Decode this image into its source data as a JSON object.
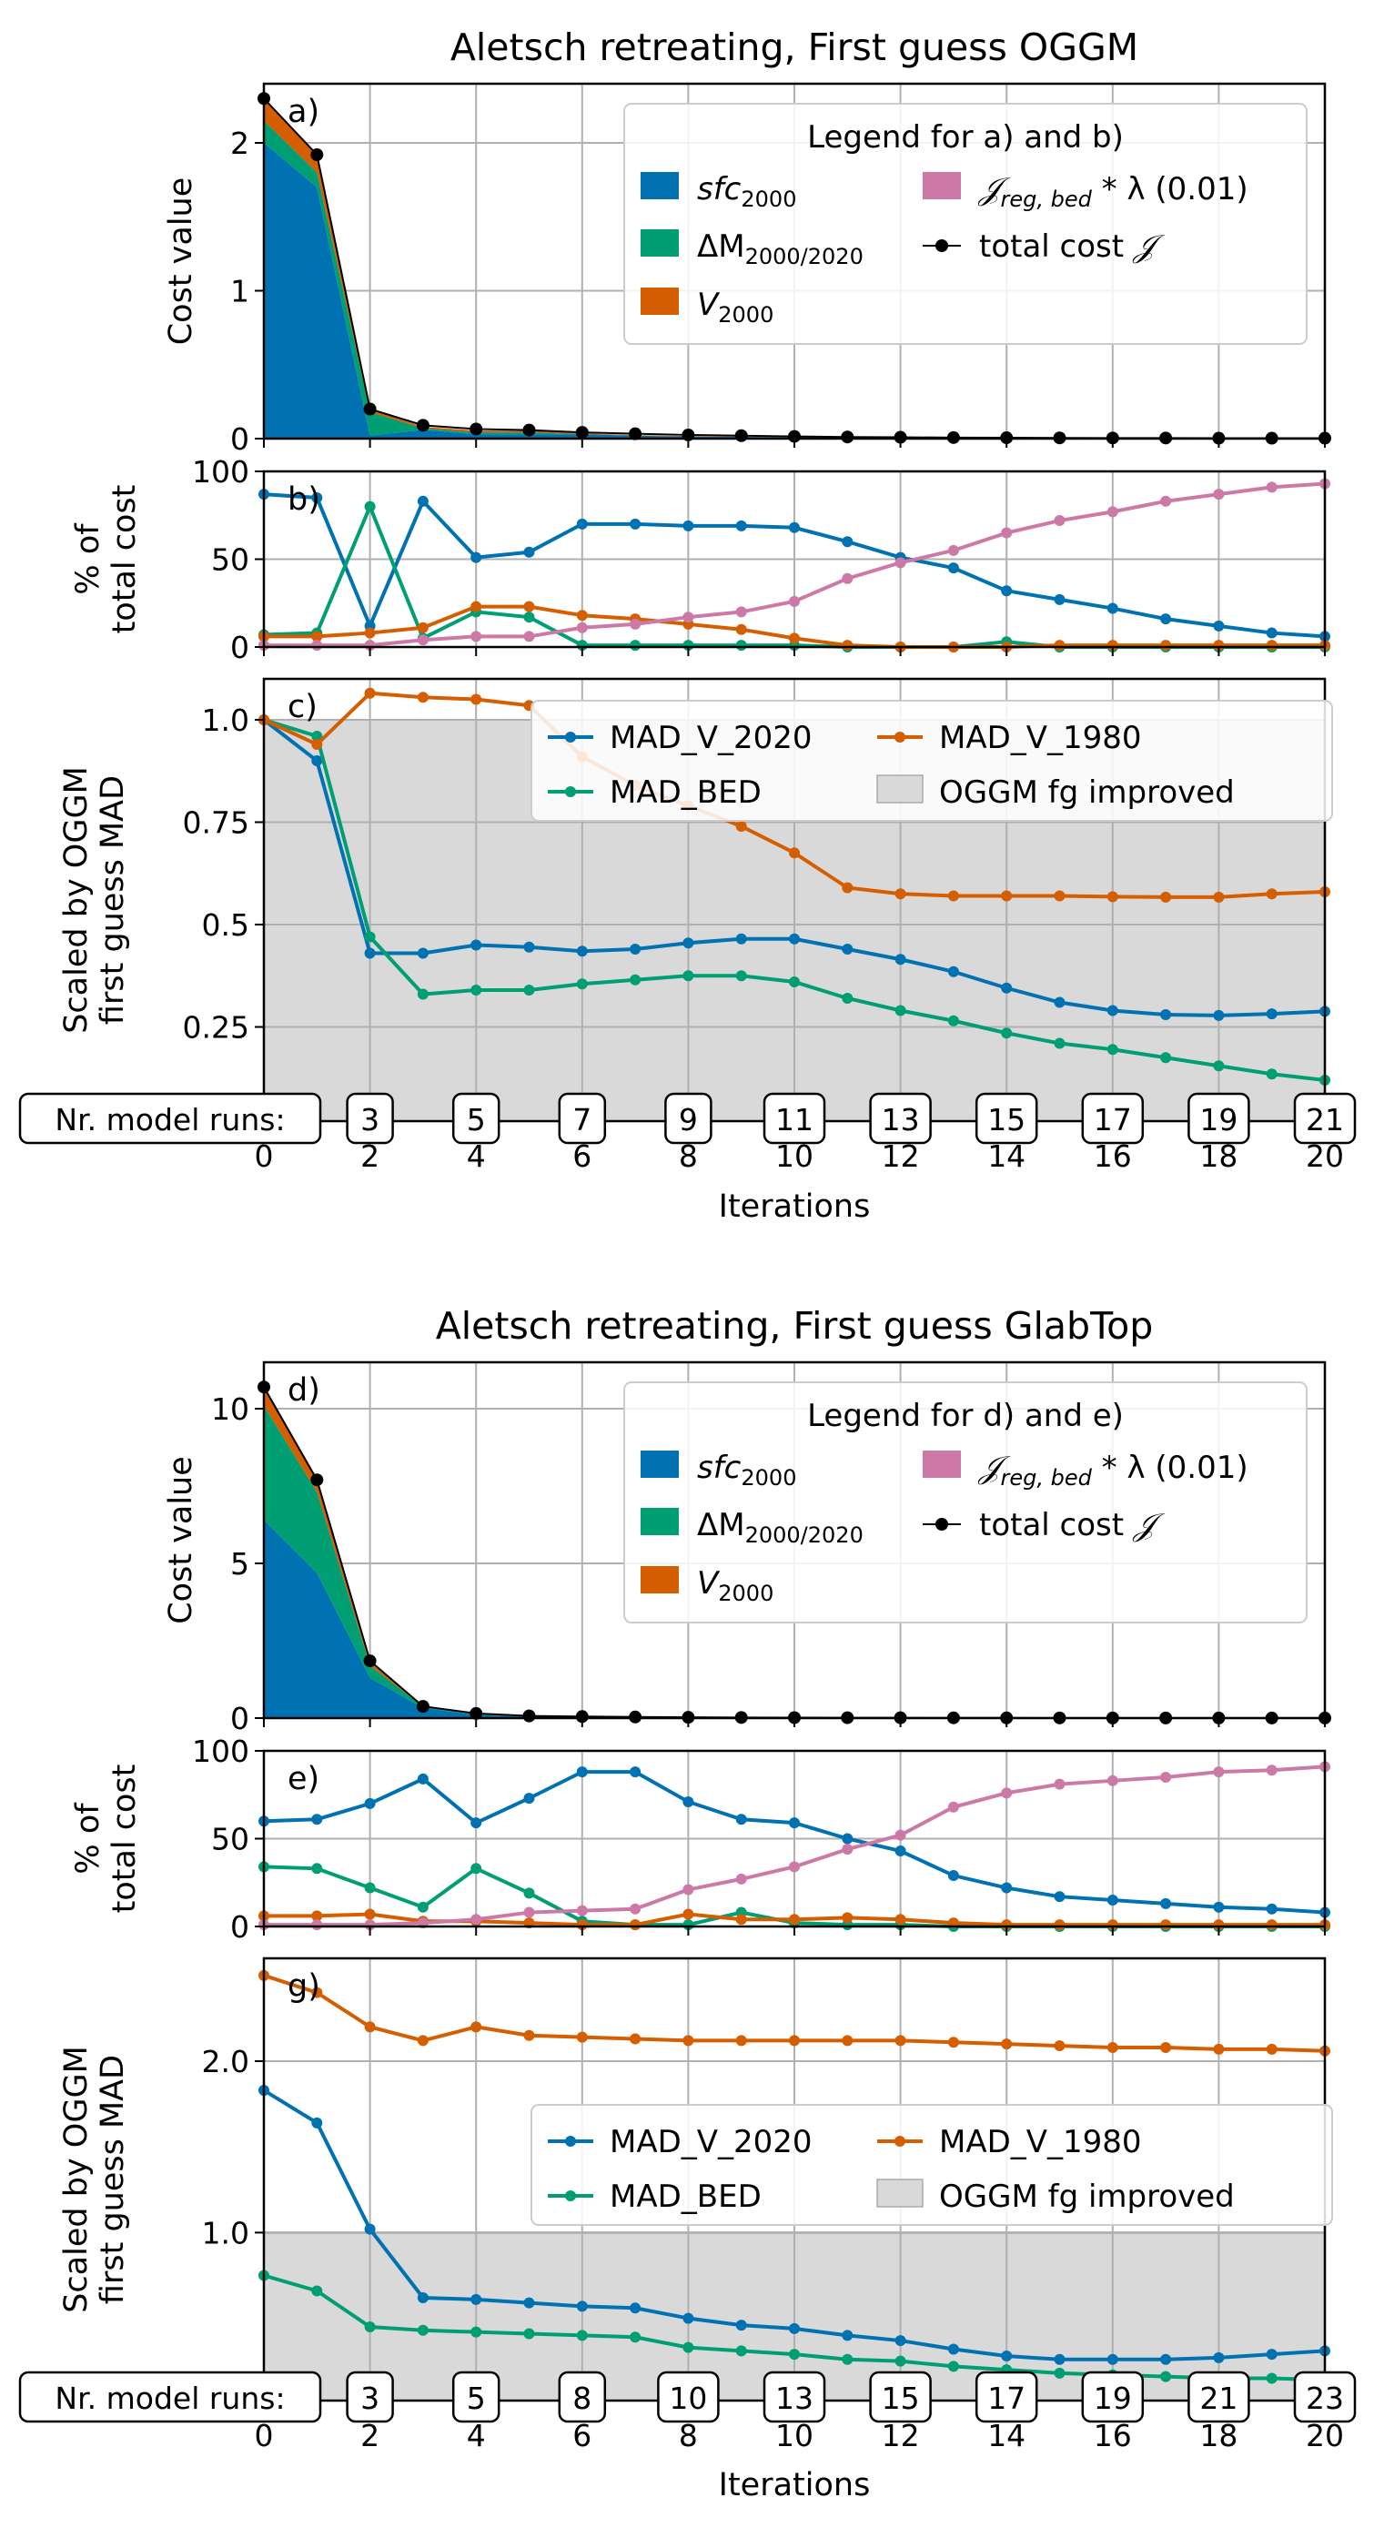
{
  "figure": {
    "xlabel": "Iterations",
    "x_ticks": [
      0,
      2,
      4,
      6,
      8,
      10,
      12,
      14,
      16,
      18,
      20
    ],
    "runs_label": "Nr. model runs:",
    "colors": {
      "sfc": "#0072B2",
      "dm": "#009E73",
      "v": "#D55E00",
      "reg": "#CC79A7",
      "total": "#000000",
      "improved": "#d9d9d9"
    }
  },
  "chart_data": [
    {
      "type": "area",
      "panel": "a)",
      "title": "Aletsch retreating, First guess OGGM",
      "ylabel": "Cost value",
      "ylim": [
        0,
        2.4
      ],
      "y_ticks": [
        0,
        1,
        2
      ],
      "x": [
        0,
        1,
        2,
        3,
        4,
        5,
        6,
        7,
        8,
        9,
        10,
        11,
        12,
        13,
        14,
        15,
        16,
        17,
        18,
        19,
        20
      ],
      "series": [
        {
          "key": "sfc",
          "values": [
            2.0,
            1.7,
            0.02,
            0.06,
            0.03,
            0.03,
            0.03,
            0.02,
            0.015,
            0.012,
            0.01,
            0.006,
            0.004,
            0.003,
            0.002,
            0.001,
            0.001,
            0.001,
            0.0005,
            0.0003,
            0.0002
          ]
        },
        {
          "key": "dm",
          "values": [
            0.15,
            0.1,
            0.16,
            0.01,
            0.012,
            0.012,
            0.0,
            0.0,
            0.0,
            0.0,
            0.0,
            0.0,
            0.0,
            0.0,
            0.0,
            0.0,
            0.0,
            0.0,
            0.0,
            0.0,
            0.0
          ]
        },
        {
          "key": "v",
          "values": [
            0.15,
            0.12,
            0.02,
            0.01,
            0.013,
            0.013,
            0.006,
            0.004,
            0.003,
            0.002,
            0.001,
            0.0,
            0.0,
            0.0,
            0.0,
            0.0,
            0.0,
            0.0,
            0.0,
            0.0,
            0.0
          ]
        },
        {
          "key": "reg",
          "values": [
            0.0,
            0.0,
            0.0,
            0.0,
            0.0,
            0.0,
            0.0,
            0.0,
            0.0,
            0.0,
            0.0,
            0.0,
            0.0,
            0.0,
            0.0,
            0.0,
            0.0,
            0.0,
            0.0,
            0.0,
            0.0
          ]
        }
      ],
      "total": [
        2.3,
        1.92,
        0.2,
        0.09,
        0.065,
        0.058,
        0.042,
        0.033,
        0.025,
        0.02,
        0.015,
        0.011,
        0.009,
        0.007,
        0.006,
        0.005,
        0.004,
        0.004,
        0.003,
        0.003,
        0.003
      ],
      "legend": {
        "title": "Legend for a) and b)",
        "placement": "top-right",
        "entries": [
          "sfc_2000",
          "ΔM_2000/2020",
          "V_2000",
          "J_reg,bed * λ (0.01)",
          "total cost J"
        ]
      }
    },
    {
      "type": "line",
      "panel": "b)",
      "ylabel_lines": [
        "% of",
        "total cost"
      ],
      "ylim": [
        0,
        100
      ],
      "y_ticks": [
        0,
        50,
        100
      ],
      "x": [
        0,
        1,
        2,
        3,
        4,
        5,
        6,
        7,
        8,
        9,
        10,
        11,
        12,
        13,
        14,
        15,
        16,
        17,
        18,
        19,
        20
      ],
      "series": [
        {
          "key": "sfc",
          "values": [
            87,
            85,
            12,
            83,
            51,
            54,
            70,
            70,
            69,
            69,
            68,
            60,
            51,
            45,
            32,
            27,
            22,
            16,
            12,
            8,
            6
          ]
        },
        {
          "key": "dm",
          "values": [
            7,
            8,
            80,
            5,
            20,
            17,
            1,
            1,
            1,
            1,
            1,
            0,
            0,
            0,
            3,
            0,
            0,
            0,
            0,
            0,
            0
          ]
        },
        {
          "key": "v",
          "values": [
            6,
            6,
            8,
            11,
            23,
            23,
            18,
            16,
            13,
            10,
            5,
            1,
            0,
            0,
            0,
            1,
            1,
            1,
            1,
            1,
            1
          ]
        },
        {
          "key": "reg",
          "values": [
            1,
            1,
            1,
            4,
            6,
            6,
            11,
            13,
            17,
            20,
            26,
            39,
            48,
            55,
            65,
            72,
            77,
            83,
            87,
            91,
            93
          ]
        }
      ]
    },
    {
      "type": "line",
      "panel": "c)",
      "ylabel_lines": [
        "Scaled by OGGM",
        "first guess MAD"
      ],
      "ylim": [
        0.02,
        1.1
      ],
      "y_ticks": [
        0.25,
        0.5,
        0.75,
        1.0
      ],
      "y_tick_labels": [
        "0.25",
        "0.5",
        "0.75",
        "1.0"
      ],
      "improved_below": 1.0,
      "x": [
        0,
        1,
        2,
        3,
        4,
        5,
        6,
        7,
        8,
        9,
        10,
        11,
        12,
        13,
        14,
        15,
        16,
        17,
        18,
        19,
        20
      ],
      "series": [
        {
          "key": "mad_v_2020",
          "values": [
            1.0,
            0.9,
            0.43,
            0.43,
            0.45,
            0.445,
            0.435,
            0.44,
            0.455,
            0.465,
            0.465,
            0.44,
            0.415,
            0.385,
            0.345,
            0.31,
            0.29,
            0.28,
            0.278,
            0.282,
            0.288
          ]
        },
        {
          "key": "mad_bed",
          "values": [
            1.0,
            0.96,
            0.47,
            0.33,
            0.34,
            0.34,
            0.355,
            0.365,
            0.375,
            0.375,
            0.36,
            0.32,
            0.29,
            0.265,
            0.235,
            0.21,
            0.195,
            0.175,
            0.155,
            0.135,
            0.12
          ]
        },
        {
          "key": "mad_v_1980",
          "values": [
            1.0,
            0.94,
            1.065,
            1.055,
            1.05,
            1.035,
            0.91,
            0.84,
            0.79,
            0.74,
            0.675,
            0.59,
            0.575,
            0.57,
            0.57,
            0.57,
            0.568,
            0.567,
            0.567,
            0.575,
            0.58
          ]
        }
      ],
      "legend": {
        "placement": "upper center",
        "entries": [
          "MAD_V_2020",
          "MAD_V_1980",
          "MAD_BED",
          "OGGM fg improved"
        ]
      },
      "runs": [
        {
          "x": 2,
          "label": "3"
        },
        {
          "x": 4,
          "label": "5"
        },
        {
          "x": 6,
          "label": "7"
        },
        {
          "x": 8,
          "label": "9"
        },
        {
          "x": 10,
          "label": "11"
        },
        {
          "x": 12,
          "label": "13"
        },
        {
          "x": 14,
          "label": "15"
        },
        {
          "x": 16,
          "label": "17"
        },
        {
          "x": 18,
          "label": "19"
        },
        {
          "x": 20,
          "label": "21"
        }
      ]
    },
    {
      "type": "area",
      "panel": "d)",
      "title": "Aletsch retreating, First guess GlabTop",
      "ylabel": "Cost value",
      "ylim": [
        0,
        11.5
      ],
      "y_ticks": [
        0,
        5,
        10
      ],
      "x": [
        0,
        1,
        2,
        3,
        4,
        5,
        6,
        7,
        8,
        9,
        10,
        11,
        12,
        13,
        14,
        15,
        16,
        17,
        18,
        19,
        20
      ],
      "series": [
        {
          "key": "sfc",
          "values": [
            6.4,
            4.7,
            1.3,
            0.33,
            0.1,
            0.05,
            0.04,
            0.03,
            0.02,
            0.015,
            0.01,
            0.008,
            0.006,
            0.004,
            0.003,
            0.002,
            0.002,
            0.001,
            0.001,
            0.001,
            0.001
          ]
        },
        {
          "key": "dm",
          "values": [
            3.7,
            2.6,
            0.4,
            0.04,
            0.05,
            0.013,
            0.0,
            0.0,
            0.0,
            0.0,
            0.0,
            0.0,
            0.0,
            0.0,
            0.0,
            0.0,
            0.0,
            0.0,
            0.0,
            0.0,
            0.0
          ]
        },
        {
          "key": "v",
          "values": [
            0.6,
            0.4,
            0.1,
            0.02,
            0.01,
            0.005,
            0.0,
            0.0,
            0.0,
            0.0,
            0.0,
            0.0,
            0.0,
            0.0,
            0.0,
            0.0,
            0.0,
            0.0,
            0.0,
            0.0,
            0.0
          ]
        },
        {
          "key": "reg",
          "values": [
            0.0,
            0.0,
            0.0,
            0.0,
            0.0,
            0.0,
            0.0,
            0.0,
            0.0,
            0.0,
            0.0,
            0.0,
            0.0,
            0.0,
            0.0,
            0.0,
            0.0,
            0.0,
            0.0,
            0.0,
            0.0
          ]
        }
      ],
      "total": [
        10.7,
        7.7,
        1.85,
        0.38,
        0.15,
        0.07,
        0.05,
        0.035,
        0.025,
        0.02,
        0.015,
        0.012,
        0.01,
        0.008,
        0.006,
        0.005,
        0.004,
        0.004,
        0.003,
        0.003,
        0.003
      ],
      "legend": {
        "title": "Legend for d) and e)",
        "placement": "top-right",
        "entries": [
          "sfc_2000",
          "ΔM_2000/2020",
          "V_2000",
          "J_reg,bed * λ (0.01)",
          "total cost J"
        ]
      }
    },
    {
      "type": "line",
      "panel": "e)",
      "ylabel_lines": [
        "% of",
        "total cost"
      ],
      "ylim": [
        0,
        100
      ],
      "y_ticks": [
        0,
        50,
        100
      ],
      "x": [
        0,
        1,
        2,
        3,
        4,
        5,
        6,
        7,
        8,
        9,
        10,
        11,
        12,
        13,
        14,
        15,
        16,
        17,
        18,
        19,
        20
      ],
      "series": [
        {
          "key": "sfc",
          "values": [
            60,
            61,
            70,
            84,
            59,
            73,
            88,
            88,
            71,
            61,
            59,
            50,
            43,
            29,
            22,
            17,
            15,
            13,
            11,
            10,
            8
          ]
        },
        {
          "key": "dm",
          "values": [
            34,
            33,
            22,
            11,
            33,
            19,
            3,
            1,
            1,
            8,
            2,
            1,
            1,
            0,
            0,
            0,
            0,
            0,
            0,
            0,
            0
          ]
        },
        {
          "key": "v",
          "values": [
            6,
            6,
            7,
            3,
            3,
            2,
            1,
            1,
            7,
            4,
            4,
            5,
            4,
            2,
            1,
            1,
            1,
            1,
            1,
            1,
            1
          ]
        },
        {
          "key": "reg",
          "values": [
            1,
            1,
            1,
            2,
            4,
            8,
            9,
            10,
            21,
            27,
            34,
            44,
            52,
            68,
            76,
            81,
            83,
            85,
            88,
            89,
            91
          ]
        }
      ]
    },
    {
      "type": "line",
      "panel": "g)",
      "ylabel_lines": [
        "Scaled by OGGM",
        "first guess MAD"
      ],
      "ylim": [
        0.02,
        2.6
      ],
      "y_ticks": [
        1.0,
        2.0
      ],
      "y_tick_labels": [
        "1.0",
        "2.0"
      ],
      "improved_below": 1.0,
      "x": [
        0,
        1,
        2,
        3,
        4,
        5,
        6,
        7,
        8,
        9,
        10,
        11,
        12,
        13,
        14,
        15,
        16,
        17,
        18,
        19,
        20
      ],
      "series": [
        {
          "key": "mad_v_2020",
          "values": [
            1.83,
            1.64,
            1.02,
            0.62,
            0.61,
            0.59,
            0.57,
            0.56,
            0.5,
            0.46,
            0.44,
            0.4,
            0.37,
            0.32,
            0.28,
            0.26,
            0.26,
            0.26,
            0.27,
            0.29,
            0.31
          ]
        },
        {
          "key": "mad_bed",
          "values": [
            0.75,
            0.66,
            0.45,
            0.43,
            0.42,
            0.41,
            0.4,
            0.39,
            0.33,
            0.31,
            0.29,
            0.26,
            0.25,
            0.22,
            0.2,
            0.18,
            0.17,
            0.16,
            0.15,
            0.15,
            0.14
          ]
        },
        {
          "key": "mad_v_1980",
          "values": [
            2.5,
            2.4,
            2.2,
            2.12,
            2.2,
            2.15,
            2.14,
            2.13,
            2.12,
            2.12,
            2.12,
            2.12,
            2.12,
            2.11,
            2.1,
            2.09,
            2.08,
            2.08,
            2.07,
            2.07,
            2.06
          ]
        }
      ],
      "legend": {
        "placement": "center-right",
        "entries": [
          "MAD_V_2020",
          "MAD_V_1980",
          "MAD_BED",
          "OGGM fg improved"
        ]
      },
      "runs": [
        {
          "x": 2,
          "label": "3"
        },
        {
          "x": 4,
          "label": "5"
        },
        {
          "x": 6,
          "label": "8"
        },
        {
          "x": 8,
          "label": "10"
        },
        {
          "x": 10,
          "label": "13"
        },
        {
          "x": 12,
          "label": "15"
        },
        {
          "x": 14,
          "label": "17"
        },
        {
          "x": 16,
          "label": "19"
        },
        {
          "x": 18,
          "label": "21"
        },
        {
          "x": 20,
          "label": "23"
        }
      ]
    }
  ]
}
